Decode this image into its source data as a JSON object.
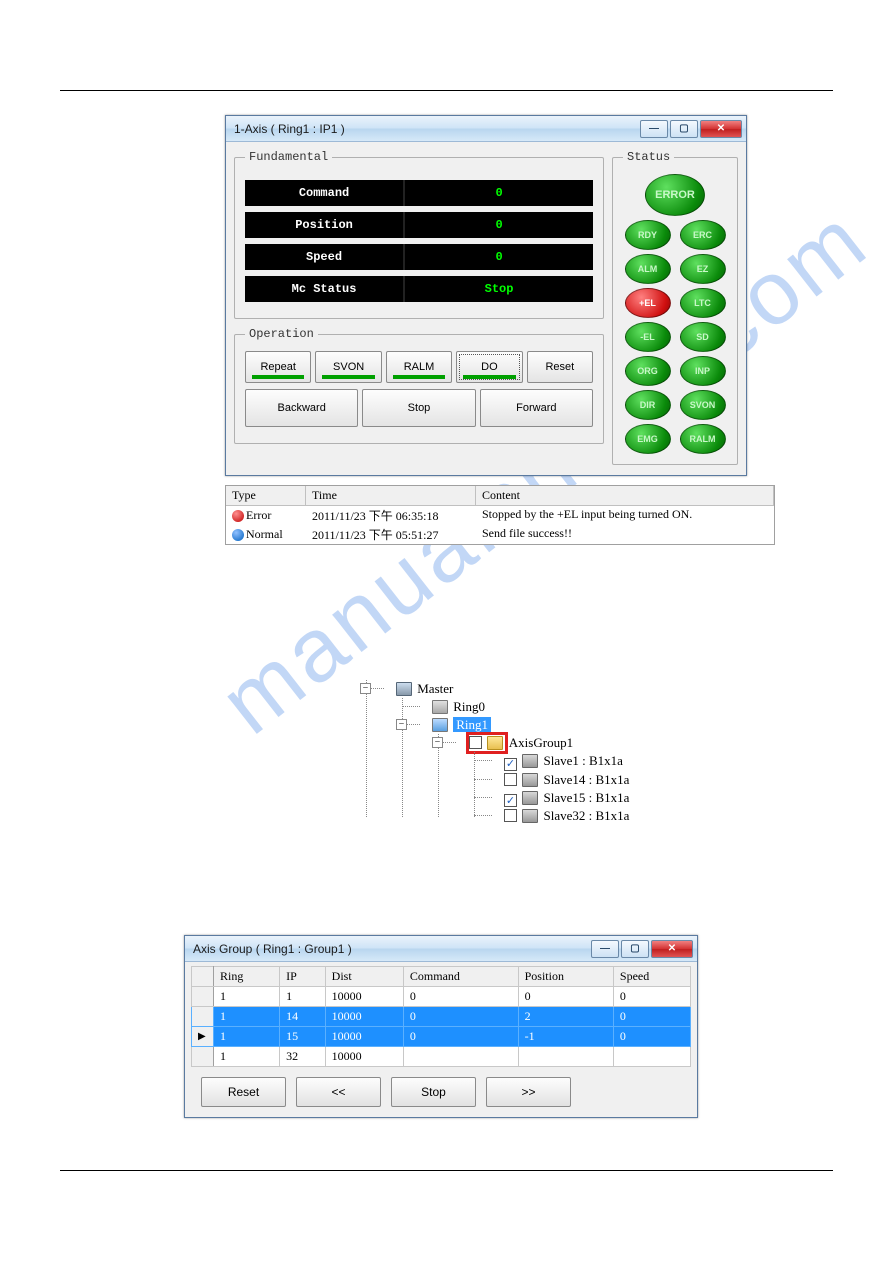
{
  "watermark": "manualshiver.com",
  "axis_window": {
    "title": "1-Axis ( Ring1 : IP1 )",
    "fundamental": {
      "legend": "Fundamental",
      "rows": [
        {
          "label": "Command",
          "value": "0"
        },
        {
          "label": "Position",
          "value": "0"
        },
        {
          "label": "Speed",
          "value": "0"
        },
        {
          "label": "Mc Status",
          "value": "Stop"
        }
      ]
    },
    "operation": {
      "legend": "Operation",
      "row1": [
        {
          "label": "Repeat",
          "indicator": true
        },
        {
          "label": "SVON",
          "indicator": true
        },
        {
          "label": "RALM",
          "indicator": true
        },
        {
          "label": "DO",
          "indicator": true,
          "focused": true
        },
        {
          "label": "Reset",
          "indicator": false
        }
      ],
      "row2": [
        {
          "label": "Backward"
        },
        {
          "label": "Stop"
        },
        {
          "label": "Forward"
        }
      ]
    },
    "status": {
      "legend": "Status",
      "error": {
        "label": "ERROR",
        "color": "green"
      },
      "leds": [
        {
          "label": "RDY",
          "color": "green"
        },
        {
          "label": "ERC",
          "color": "green"
        },
        {
          "label": "ALM",
          "color": "green"
        },
        {
          "label": "EZ",
          "color": "green"
        },
        {
          "label": "+EL",
          "color": "red"
        },
        {
          "label": "LTC",
          "color": "green"
        },
        {
          "label": "-EL",
          "color": "green"
        },
        {
          "label": "SD",
          "color": "green"
        },
        {
          "label": "ORG",
          "color": "green"
        },
        {
          "label": "INP",
          "color": "green"
        },
        {
          "label": "DIR",
          "color": "green"
        },
        {
          "label": "SVON",
          "color": "green"
        },
        {
          "label": "EMG",
          "color": "green"
        },
        {
          "label": "RALM",
          "color": "green"
        }
      ]
    }
  },
  "log": {
    "headers": {
      "type": "Type",
      "time": "Time",
      "content": "Content"
    },
    "rows": [
      {
        "kind": "Error",
        "dot": "red",
        "time": "2011/11/23 下午 06:35:18",
        "content": "Stopped by the +EL input being turned ON."
      },
      {
        "kind": "Normal",
        "dot": "blue",
        "time": "2011/11/23 下午 05:51:27",
        "content": "Send file success!!"
      }
    ]
  },
  "tree": {
    "master": "Master",
    "ring0": "Ring0",
    "ring1": "Ring1",
    "axisgroup": "AxisGroup1",
    "slaves": [
      {
        "label": "Slave1 : B1x1a",
        "checked": true
      },
      {
        "label": "Slave14 : B1x1a",
        "checked": false
      },
      {
        "label": "Slave15 : B1x1a",
        "checked": true
      },
      {
        "label": "Slave32 : B1x1a",
        "checked": false
      }
    ]
  },
  "group_window": {
    "title": "Axis Group ( Ring1 : Group1 )",
    "columns": [
      "Ring",
      "IP",
      "Dist",
      "Command",
      "Position",
      "Speed"
    ],
    "rows": [
      {
        "sel": false,
        "ptr": false,
        "cells": [
          "1",
          "1",
          "10000",
          "0",
          "0",
          "0"
        ]
      },
      {
        "sel": true,
        "ptr": false,
        "cells": [
          "1",
          "14",
          "10000",
          "0",
          "2",
          "0"
        ]
      },
      {
        "sel": true,
        "ptr": true,
        "cells": [
          "1",
          "15",
          "10000",
          "0",
          "-1",
          "0"
        ]
      },
      {
        "sel": false,
        "ptr": false,
        "cells": [
          "1",
          "32",
          "10000",
          "",
          "",
          ""
        ]
      }
    ],
    "buttons": {
      "reset": "Reset",
      "back": "<<",
      "stop": "Stop",
      "fwd": ">>"
    }
  }
}
